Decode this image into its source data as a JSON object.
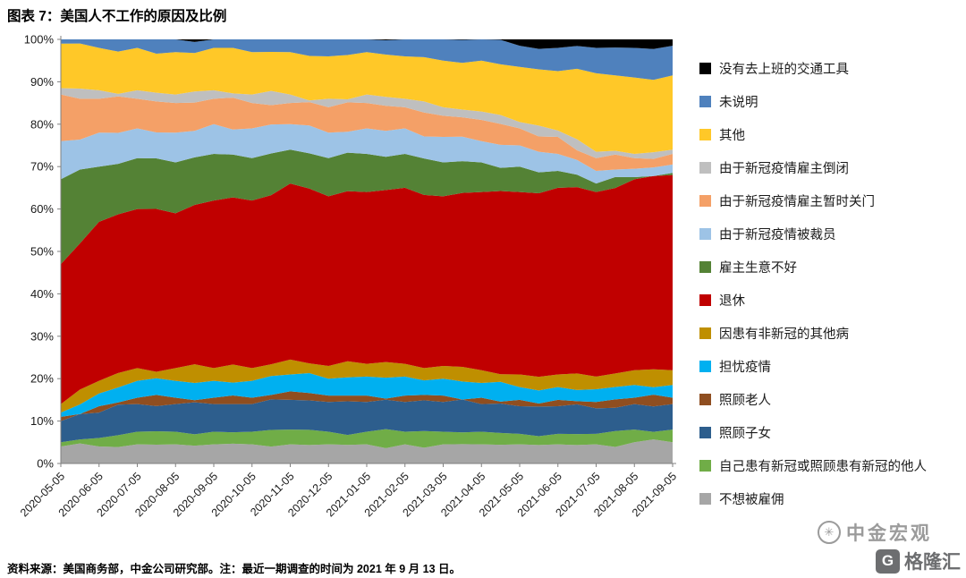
{
  "header": {
    "title": "图表 7：美国人不工作的原因及比例"
  },
  "footer": {
    "source_note": "资料来源：美国商务部，中金公司研究部。注：最近一期调查的时间为 2021 年 9 月 13 日。"
  },
  "watermark": {
    "brand": "中金宏观",
    "logo_monogram": "G",
    "logo_text": "格隆汇"
  },
  "chart_data": {
    "type": "area",
    "stacked": true,
    "percent": true,
    "title": "图表 7：美国人不工作的原因及比例",
    "xlabel": "",
    "ylabel": "",
    "ylim": [
      0,
      100
    ],
    "grid": false,
    "legend_position": "right",
    "yticks": [
      "0%",
      "10%",
      "20%",
      "30%",
      "40%",
      "50%",
      "60%",
      "70%",
      "80%",
      "90%",
      "100%"
    ],
    "x": [
      "2020-05-05",
      "2020-06-05",
      "2020-07-05",
      "2020-08-05",
      "2020-09-05",
      "2020-10-05",
      "2020-11-05",
      "2020-12-05",
      "2021-01-05",
      "2021-02-05",
      "2021-03-05",
      "2021-04-05",
      "2021-05-05",
      "2021-06-05",
      "2021-07-05",
      "2021-08-05",
      "2021-09-05"
    ],
    "series": [
      {
        "id": "no-desire-to-work",
        "name": "不想被雇佣",
        "color": "#a6a6a6",
        "values": [
          4,
          4,
          4.5,
          4.5,
          4.5,
          4.5,
          4.5,
          4.5,
          4.5,
          4.5,
          4.5,
          4.5,
          4.5,
          4.5,
          4.5,
          5,
          5
        ]
      },
      {
        "id": "sick-or-caring-covid",
        "name": "自己患有新冠或照顾患有新冠的他人",
        "color": "#70ad47",
        "values": [
          1,
          2,
          3,
          3,
          3,
          3,
          3.5,
          3,
          3,
          3,
          3,
          3,
          2.5,
          2.5,
          2.5,
          3,
          3
        ]
      },
      {
        "id": "caring-for-children",
        "name": "照顾子女",
        "color": "#2d5e8d",
        "values": [
          5,
          6,
          6.5,
          6.5,
          6.5,
          6.5,
          7,
          7,
          7,
          7,
          7,
          6.5,
          6.5,
          6.5,
          6,
          6,
          6
        ]
      },
      {
        "id": "caring-for-elderly",
        "name": "照顾老人",
        "color": "#8f4e20",
        "values": [
          1,
          1.5,
          1.5,
          1.5,
          1.5,
          1.5,
          2,
          1.5,
          1.5,
          1.5,
          1.5,
          1.5,
          1.5,
          1.5,
          1.5,
          1.5,
          1.5
        ]
      },
      {
        "id": "worried-about-covid",
        "name": "担忧疫情",
        "color": "#00b0f0",
        "values": [
          1,
          3,
          4,
          4,
          4,
          4,
          4,
          4,
          4.5,
          4.5,
          4,
          3.5,
          3,
          3,
          3,
          3,
          3
        ]
      },
      {
        "id": "sick-non-covid",
        "name": "因患有非新冠的其他病",
        "color": "#bf8f00",
        "values": [
          2,
          3,
          3,
          3,
          3,
          3,
          3.5,
          3,
          3,
          3,
          3,
          3,
          3,
          3,
          3,
          3.5,
          3.5
        ]
      },
      {
        "id": "retired",
        "name": "退休",
        "color": "#c00000",
        "values": [
          33,
          37.5,
          37.5,
          36.5,
          39.5,
          39.5,
          41.5,
          40,
          40.5,
          41.5,
          40,
          42,
          43,
          44,
          43.5,
          45,
          46
        ]
      },
      {
        "id": "employer-business-poor",
        "name": "雇主生意不好",
        "color": "#548235",
        "values": [
          20,
          13,
          12,
          12,
          11,
          10,
          8,
          9,
          9,
          8,
          8,
          7,
          6,
          4,
          2,
          0.5,
          0.5
        ]
      },
      {
        "id": "laid-off-covid",
        "name": "由于新冠疫情被裁员",
        "color": "#9dc3e6",
        "values": [
          9,
          8,
          7,
          7,
          7,
          7,
          6,
          6,
          6,
          6,
          6,
          5,
          5,
          4,
          3,
          2,
          2
        ]
      },
      {
        "id": "employer-temp-closed-covid",
        "name": "由于新冠疫情雇主暂时关门",
        "color": "#f4a067",
        "values": [
          11,
          8,
          7,
          7,
          6,
          6,
          5,
          6,
          6,
          5,
          5,
          5,
          4,
          4,
          3,
          2.5,
          2.5
        ]
      },
      {
        "id": "employer-closed-covid",
        "name": "由于新冠疫情雇主倒闭",
        "color": "#bfbfbf",
        "values": [
          1.5,
          2,
          2,
          2,
          2,
          2,
          2,
          2,
          2,
          2,
          2,
          2,
          1.5,
          1.5,
          1.5,
          1,
          1
        ]
      },
      {
        "id": "other",
        "name": "其他",
        "color": "#ffc828",
        "values": [
          10.5,
          10,
          10,
          10,
          10,
          10,
          10,
          10,
          10,
          10,
          11,
          12,
          13,
          14,
          18.5,
          18,
          17.5
        ]
      },
      {
        "id": "not-stated",
        "name": "未说明",
        "color": "#4f81bd",
        "values": [
          1,
          2,
          2,
          3,
          2,
          3,
          3,
          4,
          3,
          4,
          5,
          5,
          5,
          5.5,
          6,
          7,
          7
        ]
      },
      {
        "id": "no-transportation",
        "name": "没有去上班的交通工具",
        "color": "#000000",
        "values": [
          0,
          0,
          0,
          0,
          0,
          0,
          0,
          0,
          0,
          0,
          0,
          0,
          1.5,
          2,
          2,
          2,
          1.5
        ]
      }
    ],
    "legend": [
      {
        "id": "no-transportation",
        "label": "没有去上班的交通工具",
        "color": "#000000"
      },
      {
        "id": "not-stated",
        "label": "未说明",
        "color": "#4f81bd"
      },
      {
        "id": "other",
        "label": "其他",
        "color": "#ffc828"
      },
      {
        "id": "employer-closed-covid",
        "label": "由于新冠疫情雇主倒闭",
        "color": "#bfbfbf"
      },
      {
        "id": "employer-temp-closed-covid",
        "label": "由于新冠疫情雇主暂时关门",
        "color": "#f4a067"
      },
      {
        "id": "laid-off-covid",
        "label": "由于新冠疫情被裁员",
        "color": "#9dc3e6"
      },
      {
        "id": "employer-business-poor",
        "label": "雇主生意不好",
        "color": "#548235"
      },
      {
        "id": "retired",
        "label": "退休",
        "color": "#c00000"
      },
      {
        "id": "sick-non-covid",
        "label": "因患有非新冠的其他病",
        "color": "#bf8f00"
      },
      {
        "id": "worried-about-covid",
        "label": "担忧疫情",
        "color": "#00b0f0"
      },
      {
        "id": "caring-for-elderly",
        "label": "照顾老人",
        "color": "#8f4e20"
      },
      {
        "id": "caring-for-children",
        "label": "照顾子女",
        "color": "#2d5e8d"
      },
      {
        "id": "sick-or-caring-covid",
        "label": "自己患有新冠或照顾患有新冠的他人",
        "color": "#70ad47"
      },
      {
        "id": "no-desire-to-work",
        "label": "不想被雇佣",
        "color": "#a6a6a6"
      }
    ]
  }
}
